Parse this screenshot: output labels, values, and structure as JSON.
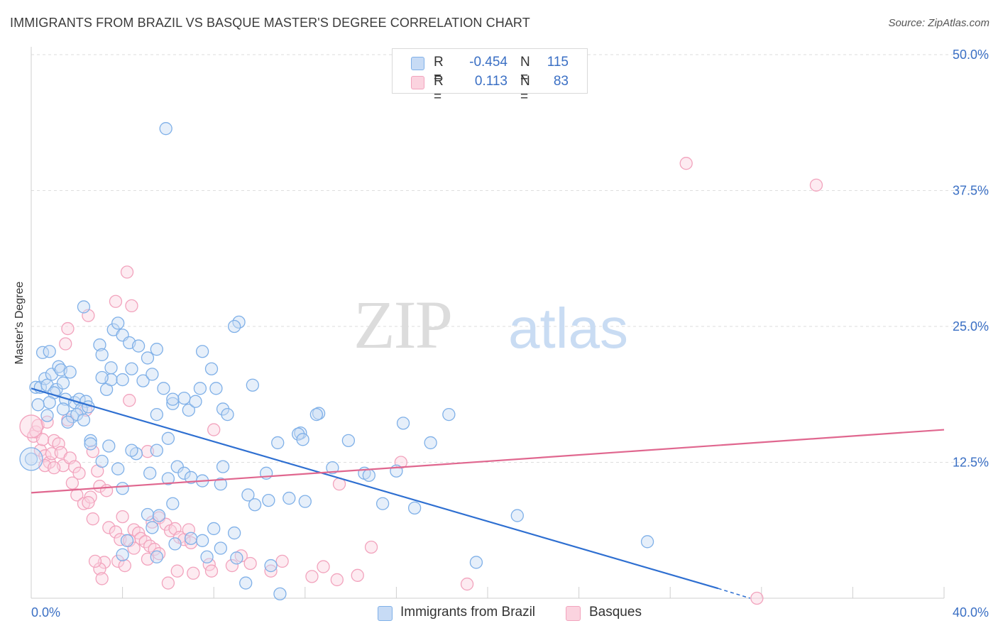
{
  "title": "IMMIGRANTS FROM BRAZIL VS BASQUE MASTER'S DEGREE CORRELATION CHART",
  "source": "Source: ZipAtlas.com",
  "watermark": {
    "zip": "ZIP",
    "atlas": "atlas"
  },
  "legend": {
    "rows": [
      {
        "r_label": "R =",
        "r_value": "-0.454",
        "n_label": "N =",
        "n_value": "115",
        "color": "#7fb0e8"
      },
      {
        "r_label": "R =",
        "r_value": "0.113",
        "n_label": "N =",
        "n_value": "83",
        "color": "#f2a3bd"
      }
    ]
  },
  "bottom_legend": [
    "Immigrants from Brazil",
    "Basques"
  ],
  "chart_data": {
    "type": "scatter",
    "title": "IMMIGRANTS FROM BRAZIL VS BASQUE MASTER'S DEGREE CORRELATION CHART",
    "xlabel": "",
    "ylabel": "Master's Degree",
    "xlim": [
      0,
      40
    ],
    "ylim": [
      0,
      50
    ],
    "x_tick_labels": [
      "0.0%",
      "40.0%"
    ],
    "y_ticks": [
      12.5,
      25.0,
      37.5,
      50.0
    ],
    "y_tick_labels": [
      "12.5%",
      "25.0%",
      "37.5%",
      "50.0%"
    ],
    "grid": "horizontal dashed",
    "legend_position": "top-center",
    "series": [
      {
        "name": "Immigrants from Brazil",
        "color": "#7fb0e8",
        "line_color": "#2e6fd1",
        "trend": {
          "x": [
            0,
            30.1
          ],
          "y": [
            19.3,
            0.9
          ],
          "dashed_to": [
            31.5,
            0.0
          ]
        },
        "points": [
          [
            0.2,
            19.4
          ],
          [
            0.4,
            19.4
          ],
          [
            0.6,
            20.2
          ],
          [
            0.7,
            19.6
          ],
          [
            0.5,
            22.6
          ],
          [
            0.8,
            22.7
          ],
          [
            0.9,
            20.6
          ],
          [
            1.2,
            21.3
          ],
          [
            1.1,
            19.2
          ],
          [
            1.4,
            19.8
          ],
          [
            1.3,
            21.0
          ],
          [
            1.0,
            18.9
          ],
          [
            0.8,
            18.0
          ],
          [
            1.7,
            20.8
          ],
          [
            1.5,
            18.3
          ],
          [
            1.9,
            18.0
          ],
          [
            2.1,
            18.3
          ],
          [
            2.4,
            18.1
          ],
          [
            2.2,
            17.4
          ],
          [
            2.5,
            17.6
          ],
          [
            1.4,
            17.4
          ],
          [
            1.8,
            16.7
          ],
          [
            2.0,
            16.9
          ],
          [
            2.3,
            16.4
          ],
          [
            1.6,
            16.2
          ],
          [
            0.7,
            16.8
          ],
          [
            0.3,
            17.8
          ],
          [
            0.0,
            12.8
          ],
          [
            2.3,
            26.8
          ],
          [
            3.0,
            23.3
          ],
          [
            3.1,
            22.4
          ],
          [
            3.3,
            19.2
          ],
          [
            3.5,
            21.2
          ],
          [
            3.6,
            24.7
          ],
          [
            3.8,
            25.3
          ],
          [
            4.0,
            24.2
          ],
          [
            3.5,
            20.1
          ],
          [
            4.3,
            23.5
          ],
          [
            4.4,
            21.1
          ],
          [
            4.0,
            20.1
          ],
          [
            3.1,
            20.3
          ],
          [
            4.7,
            23.2
          ],
          [
            4.9,
            20.0
          ],
          [
            5.1,
            22.1
          ],
          [
            5.3,
            20.6
          ],
          [
            5.5,
            22.9
          ],
          [
            5.8,
            19.3
          ],
          [
            6.2,
            17.9
          ],
          [
            6.7,
            18.4
          ],
          [
            6.9,
            17.3
          ],
          [
            5.5,
            16.9
          ],
          [
            6.2,
            18.3
          ],
          [
            7.2,
            18.1
          ],
          [
            7.4,
            19.3
          ],
          [
            7.5,
            22.7
          ],
          [
            7.9,
            21.1
          ],
          [
            8.1,
            19.3
          ],
          [
            8.4,
            17.4
          ],
          [
            9.1,
            25.4
          ],
          [
            8.9,
            25.0
          ],
          [
            8.6,
            16.9
          ],
          [
            9.7,
            19.6
          ],
          [
            10.3,
            11.5
          ],
          [
            10.8,
            14.3
          ],
          [
            11.8,
            15.2
          ],
          [
            11.7,
            15.1
          ],
          [
            12.6,
            17.0
          ],
          [
            11.9,
            14.6
          ],
          [
            12.5,
            16.9
          ],
          [
            13.2,
            12.0
          ],
          [
            12.0,
            8.9
          ],
          [
            13.9,
            14.5
          ],
          [
            14.6,
            11.5
          ],
          [
            14.8,
            11.3
          ],
          [
            15.4,
            8.7
          ],
          [
            16.0,
            11.7
          ],
          [
            16.3,
            16.1
          ],
          [
            16.8,
            8.3
          ],
          [
            17.5,
            14.3
          ],
          [
            18.3,
            16.9
          ],
          [
            2.6,
            14.5
          ],
          [
            2.6,
            14.2
          ],
          [
            3.1,
            12.6
          ],
          [
            3.4,
            14.0
          ],
          [
            3.8,
            11.9
          ],
          [
            4.0,
            10.1
          ],
          [
            4.6,
            13.3
          ],
          [
            4.4,
            13.6
          ],
          [
            5.2,
            11.5
          ],
          [
            5.5,
            13.6
          ],
          [
            6.0,
            14.7
          ],
          [
            6.2,
            8.7
          ],
          [
            6.0,
            11.0
          ],
          [
            6.4,
            12.1
          ],
          [
            6.7,
            11.5
          ],
          [
            7.0,
            11.1
          ],
          [
            7.5,
            10.8
          ],
          [
            8.3,
            10.5
          ],
          [
            8.4,
            12.1
          ],
          [
            8.0,
            6.4
          ],
          [
            8.3,
            4.6
          ],
          [
            8.9,
            6.0
          ],
          [
            9.5,
            9.5
          ],
          [
            9.8,
            8.6
          ],
          [
            10.4,
            9.0
          ],
          [
            11.3,
            9.2
          ],
          [
            5.1,
            7.7
          ],
          [
            5.6,
            7.6
          ],
          [
            6.3,
            5.0
          ],
          [
            7.0,
            5.5
          ],
          [
            7.5,
            5.3
          ],
          [
            5.3,
            6.5
          ],
          [
            4.0,
            4.0
          ],
          [
            4.2,
            5.3
          ],
          [
            5.5,
            3.8
          ],
          [
            7.7,
            3.8
          ],
          [
            9.0,
            3.7
          ],
          [
            9.4,
            1.4
          ],
          [
            10.5,
            3.0
          ],
          [
            10.9,
            0.4
          ],
          [
            19.5,
            3.3
          ],
          [
            21.3,
            7.6
          ],
          [
            27.0,
            5.2
          ],
          [
            5.9,
            43.2
          ]
        ]
      },
      {
        "name": "Basques",
        "color": "#f2a3bd",
        "line_color": "#e0678f",
        "trend": {
          "x": [
            0,
            40
          ],
          "y": [
            9.7,
            15.5
          ]
        },
        "points": [
          [
            0.1,
            14.9
          ],
          [
            0.2,
            15.3
          ],
          [
            0.3,
            15.9
          ],
          [
            0.4,
            13.6
          ],
          [
            0.5,
            14.6
          ],
          [
            0.6,
            13.1
          ],
          [
            0.8,
            12.5
          ],
          [
            0.9,
            13.3
          ],
          [
            1.0,
            14.5
          ],
          [
            0.7,
            16.2
          ],
          [
            0.6,
            12.2
          ],
          [
            1.2,
            14.2
          ],
          [
            1.3,
            13.4
          ],
          [
            1.4,
            12.2
          ],
          [
            1.0,
            12.0
          ],
          [
            1.6,
            16.4
          ],
          [
            1.7,
            12.9
          ],
          [
            1.9,
            12.1
          ],
          [
            2.1,
            11.5
          ],
          [
            2.4,
            17.3
          ],
          [
            2.7,
            13.5
          ],
          [
            2.9,
            11.7
          ],
          [
            1.8,
            10.6
          ],
          [
            2.0,
            9.5
          ],
          [
            2.3,
            8.7
          ],
          [
            2.6,
            9.3
          ],
          [
            2.5,
            8.8
          ],
          [
            2.7,
            7.3
          ],
          [
            3.0,
            10.3
          ],
          [
            3.3,
            9.9
          ],
          [
            1.6,
            24.8
          ],
          [
            1.5,
            23.4
          ],
          [
            2.5,
            26.0
          ],
          [
            3.7,
            27.3
          ],
          [
            4.2,
            30.0
          ],
          [
            4.4,
            26.9
          ],
          [
            4.3,
            18.2
          ],
          [
            3.4,
            6.5
          ],
          [
            3.7,
            6.1
          ],
          [
            3.9,
            5.4
          ],
          [
            4.0,
            7.5
          ],
          [
            4.5,
            6.3
          ],
          [
            4.7,
            6.0
          ],
          [
            4.8,
            5.5
          ],
          [
            5.0,
            5.2
          ],
          [
            5.2,
            4.8
          ],
          [
            5.4,
            4.5
          ],
          [
            5.6,
            4.1
          ],
          [
            5.3,
            7.0
          ],
          [
            5.6,
            7.4
          ],
          [
            5.9,
            6.8
          ],
          [
            6.1,
            6.2
          ],
          [
            6.3,
            6.4
          ],
          [
            6.5,
            5.6
          ],
          [
            6.7,
            5.4
          ],
          [
            6.9,
            6.3
          ],
          [
            7.0,
            5.1
          ],
          [
            4.3,
            5.3
          ],
          [
            4.5,
            4.6
          ],
          [
            3.8,
            3.4
          ],
          [
            4.1,
            3.0
          ],
          [
            3.2,
            3.3
          ],
          [
            3.0,
            2.7
          ],
          [
            2.8,
            3.4
          ],
          [
            3.1,
            1.8
          ],
          [
            5.1,
            3.6
          ],
          [
            6.0,
            1.4
          ],
          [
            6.4,
            2.5
          ],
          [
            7.1,
            2.3
          ],
          [
            7.8,
            3.1
          ],
          [
            7.9,
            2.5
          ],
          [
            8.8,
            3.0
          ],
          [
            9.2,
            3.9
          ],
          [
            9.6,
            3.2
          ],
          [
            10.5,
            2.5
          ],
          [
            11.0,
            3.4
          ],
          [
            12.3,
            2.0
          ],
          [
            12.8,
            2.9
          ],
          [
            13.4,
            1.7
          ],
          [
            14.3,
            2.1
          ],
          [
            14.9,
            4.7
          ],
          [
            16.2,
            12.5
          ],
          [
            19.1,
            1.3
          ],
          [
            31.8,
            0.0
          ],
          [
            28.7,
            40.0
          ],
          [
            34.4,
            38.0
          ],
          [
            5.1,
            13.5
          ],
          [
            8.0,
            15.5
          ],
          [
            13.5,
            10.5
          ]
        ]
      }
    ]
  }
}
